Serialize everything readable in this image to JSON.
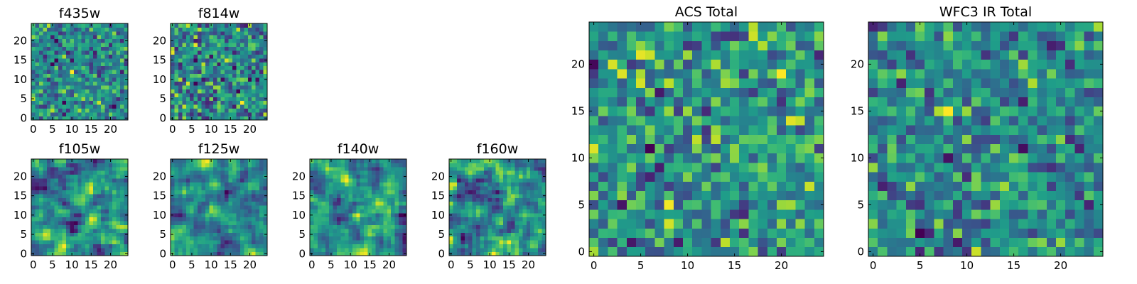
{
  "chart_data": [
    {
      "type": "heatmap",
      "title": "f435w",
      "rows": 25,
      "cols": 25,
      "xlim": [
        -0.5,
        24.5
      ],
      "ylim": [
        -0.5,
        24.5
      ],
      "xticks": [
        0,
        5,
        10,
        15,
        20
      ],
      "yticks": [
        0,
        5,
        10,
        15,
        20
      ],
      "colormap": "viridis",
      "values": []
    },
    {
      "type": "heatmap",
      "title": "f814w",
      "rows": 25,
      "cols": 25,
      "xlim": [
        -0.5,
        24.5
      ],
      "ylim": [
        -0.5,
        24.5
      ],
      "xticks": [
        0,
        5,
        10,
        15,
        20
      ],
      "yticks": [
        0,
        5,
        10,
        15,
        20
      ],
      "colormap": "viridis",
      "values": []
    },
    {
      "type": "heatmap",
      "title": "f105w",
      "rows": 25,
      "cols": 25,
      "xlim": [
        -0.5,
        24.5
      ],
      "ylim": [
        -0.5,
        24.5
      ],
      "xticks": [
        0,
        5,
        10,
        15,
        20
      ],
      "yticks": [
        0,
        5,
        10,
        15,
        20
      ],
      "colormap": "viridis",
      "values": []
    },
    {
      "type": "heatmap",
      "title": "f125w",
      "rows": 25,
      "cols": 25,
      "xlim": [
        -0.5,
        24.5
      ],
      "ylim": [
        -0.5,
        24.5
      ],
      "xticks": [
        0,
        5,
        10,
        15,
        20
      ],
      "yticks": [
        0,
        5,
        10,
        15,
        20
      ],
      "colormap": "viridis",
      "values": []
    },
    {
      "type": "heatmap",
      "title": "f140w",
      "rows": 25,
      "cols": 25,
      "xlim": [
        -0.5,
        24.5
      ],
      "ylim": [
        -0.5,
        24.5
      ],
      "xticks": [
        0,
        5,
        10,
        15,
        20
      ],
      "yticks": [
        0,
        5,
        10,
        15,
        20
      ],
      "colormap": "viridis",
      "values": []
    },
    {
      "type": "heatmap",
      "title": "f160w",
      "rows": 25,
      "cols": 25,
      "xlim": [
        -0.5,
        24.5
      ],
      "ylim": [
        -0.5,
        24.5
      ],
      "xticks": [
        0,
        5,
        10,
        15,
        20
      ],
      "yticks": [
        0,
        5,
        10,
        15,
        20
      ],
      "colormap": "viridis",
      "values": []
    },
    {
      "type": "heatmap",
      "title": "ACS Total",
      "rows": 25,
      "cols": 25,
      "xlim": [
        -0.5,
        24.5
      ],
      "ylim": [
        -0.5,
        24.5
      ],
      "xticks": [
        0,
        5,
        10,
        15,
        20
      ],
      "yticks": [
        0,
        5,
        10,
        15,
        20
      ],
      "colormap": "viridis",
      "values": []
    },
    {
      "type": "heatmap",
      "title": "WFC3 IR Total",
      "rows": 25,
      "cols": 25,
      "xlim": [
        -0.5,
        24.5
      ],
      "ylim": [
        -0.5,
        24.5
      ],
      "xticks": [
        0,
        5,
        10,
        15,
        20
      ],
      "yticks": [
        0,
        5,
        10,
        15,
        20
      ],
      "colormap": "viridis",
      "values": []
    }
  ]
}
